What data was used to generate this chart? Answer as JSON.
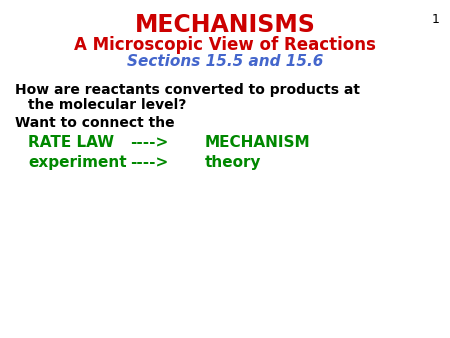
{
  "bg_color": "#ffffff",
  "slide_number": "1",
  "title_line1": "MECHANISMS",
  "title_line2": "A Microscopic View of Reactions",
  "title_line3": "Sections 15.5 and 15.6",
  "title_color1": "#cc0000",
  "title_color2": "#cc0000",
  "title_color3": "#4466cc",
  "body_color": "#000000",
  "green_color": "#008800",
  "line1": "How are reactants converted to products at",
  "line2": "    the molecular level?",
  "line3": "Want to connect the",
  "green1a": "RATE LAW",
  "green1b": "---->",
  "green1c": "MECHANISM",
  "green2a": "experiment",
  "green2b": "---->",
  "green2c": "theory",
  "figsize": [
    4.5,
    3.38
  ],
  "dpi": 100
}
